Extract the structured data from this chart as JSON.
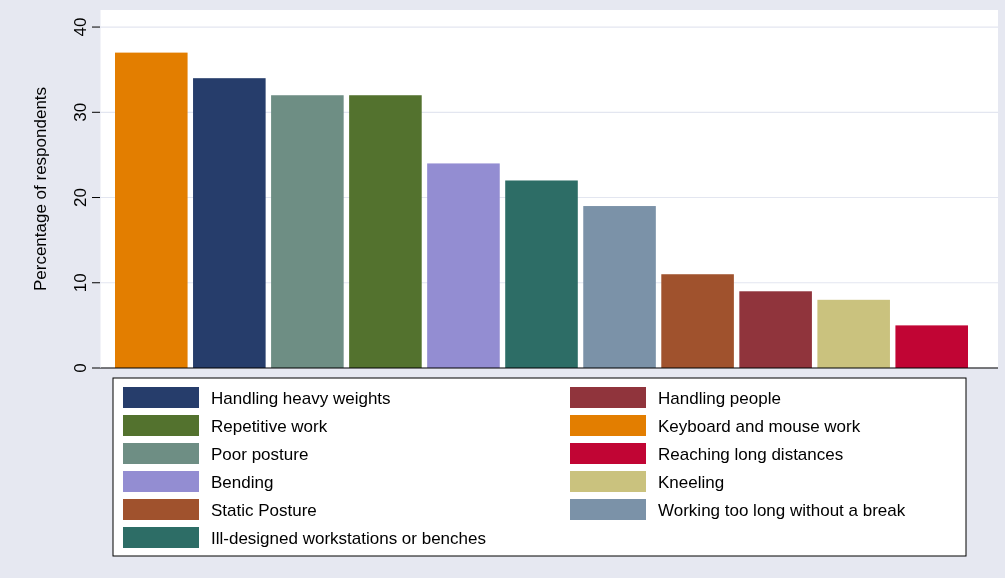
{
  "chart_data": {
    "type": "bar",
    "ylabel": "Percentage of respondents",
    "categories": [
      null,
      null,
      null,
      null,
      null,
      null,
      null,
      null,
      null,
      null,
      null
    ],
    "series": [
      {
        "name": "Handling heavy weights",
        "color": "#263d6b",
        "values": [
          null,
          34,
          null,
          null,
          null,
          null,
          null,
          null,
          null,
          null,
          null
        ]
      },
      {
        "name": "Handling people",
        "color": "#90343c",
        "values": [
          null,
          null,
          null,
          null,
          null,
          null,
          null,
          null,
          9,
          null,
          null
        ]
      },
      {
        "name": "Repetitive work",
        "color": "#53722e",
        "values": [
          null,
          null,
          null,
          32,
          null,
          null,
          null,
          null,
          null,
          null,
          null
        ]
      },
      {
        "name": "Keyboard and mouse work",
        "color": "#e37e00",
        "values": [
          37,
          null,
          null,
          null,
          null,
          null,
          null,
          null,
          null,
          null,
          null
        ]
      },
      {
        "name": "Poor posture",
        "color": "#6e8e84",
        "values": [
          null,
          null,
          32,
          null,
          null,
          null,
          null,
          null,
          null,
          null,
          null
        ]
      },
      {
        "name": "Reaching long distances",
        "color": "#c10534",
        "values": [
          null,
          null,
          null,
          null,
          null,
          null,
          null,
          null,
          null,
          null,
          5
        ]
      },
      {
        "name": "Bending",
        "color": "#938dd2",
        "values": [
          null,
          null,
          null,
          null,
          24,
          null,
          null,
          null,
          null,
          null,
          null
        ]
      },
      {
        "name": "Kneeling",
        "color": "#cac27e",
        "values": [
          null,
          null,
          null,
          null,
          null,
          null,
          null,
          null,
          null,
          8,
          null
        ]
      },
      {
        "name": "Static Posture",
        "color": "#a0522d",
        "values": [
          null,
          null,
          null,
          null,
          null,
          null,
          null,
          11,
          null,
          null,
          null
        ]
      },
      {
        "name": "Working too long without a break",
        "color": "#7b92a8",
        "values": [
          null,
          null,
          null,
          null,
          null,
          null,
          19,
          null,
          null,
          null,
          null
        ]
      },
      {
        "name": "Ill-designed workstations or benches",
        "color": "#2d6d66",
        "values": [
          null,
          null,
          null,
          null,
          null,
          22,
          null,
          null,
          null,
          null,
          null
        ]
      }
    ],
    "ylim": [
      0,
      42
    ],
    "yticks": [
      0,
      10,
      20,
      30,
      40
    ],
    "grid": "y",
    "legend": "bottom"
  }
}
